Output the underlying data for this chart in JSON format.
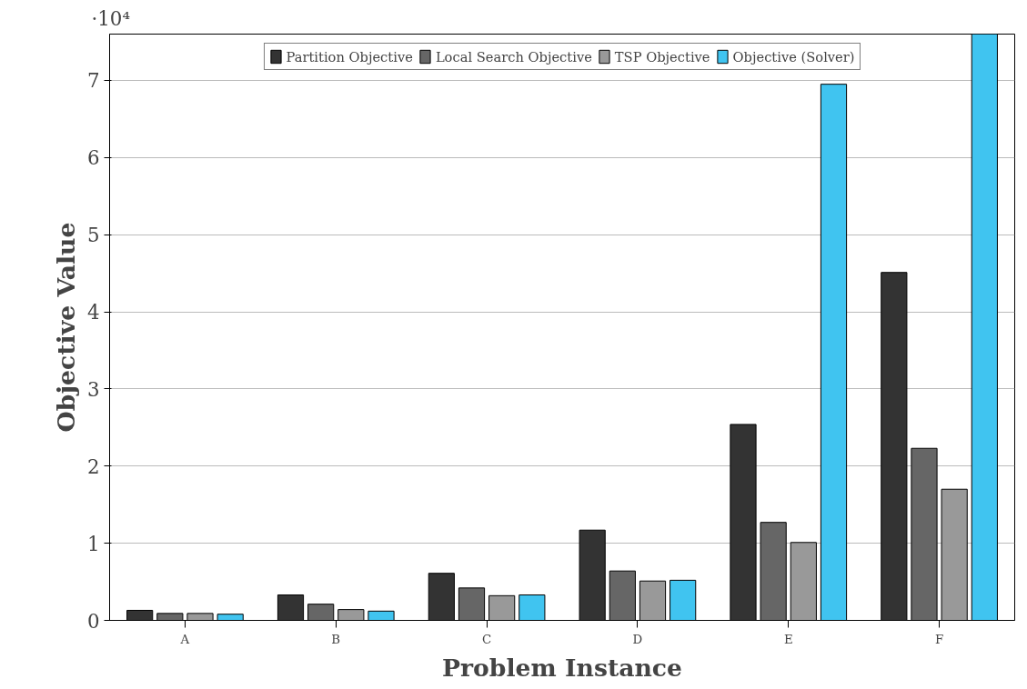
{
  "chart_data": {
    "type": "bar",
    "xlabel": "Problem Instance",
    "ylabel": "Objective Value",
    "categories": [
      "A",
      "B",
      "C",
      "D",
      "E",
      "F"
    ],
    "series": [
      {
        "name": "Partition Objective",
        "color": "#333333",
        "values": [
          0.13,
          0.33,
          0.61,
          1.17,
          2.54,
          4.51
        ]
      },
      {
        "name": "Local Search Objective",
        "color": "#666666",
        "values": [
          0.09,
          0.21,
          0.42,
          0.64,
          1.27,
          2.23
        ]
      },
      {
        "name": "TSP Objective",
        "color": "#999999",
        "values": [
          0.09,
          0.14,
          0.32,
          0.51,
          1.01,
          1.7
        ]
      },
      {
        "name": "Objective (Solver)",
        "color": "#40c4f0",
        "values": [
          0.08,
          0.12,
          0.33,
          0.52,
          6.95,
          7.6
        ]
      }
    ],
    "ylim": [
      0,
      7.6
    ],
    "yticks": [
      0,
      1,
      2,
      3,
      4,
      5,
      6,
      7
    ],
    "grid": "y",
    "legend": "top",
    "annotations": [
      "·10⁴"
    ]
  }
}
